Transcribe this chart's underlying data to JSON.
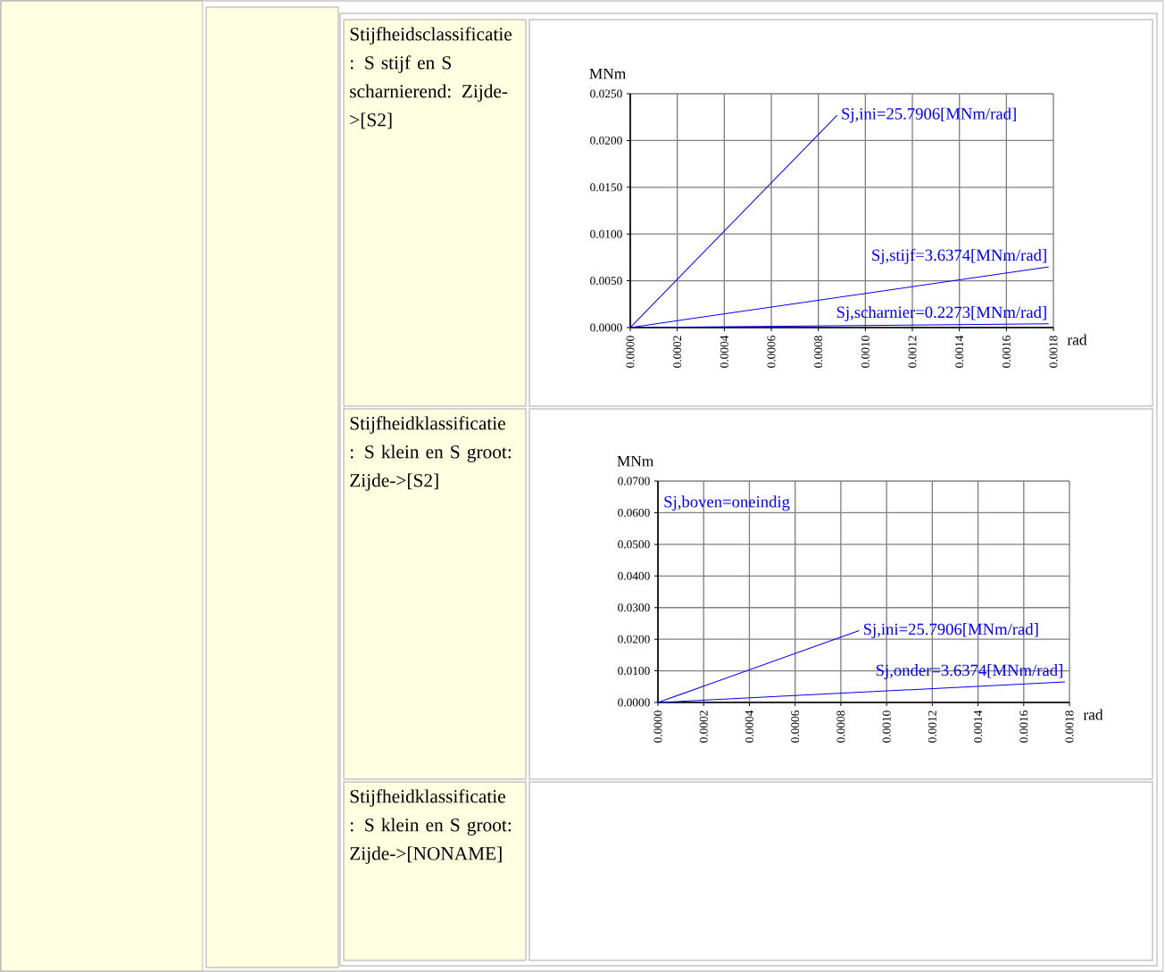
{
  "chart_data": [
    {
      "type": "line",
      "title": "Stijfheidsclassificatie : S stijf en S scharnierend: Zijde->[S2]",
      "xlabel": "rad",
      "ylabel": "MNm",
      "xlim": [
        0,
        0.0018
      ],
      "ylim": [
        0,
        0.025
      ],
      "xticks": [
        {
          "value": 0,
          "label": "0.0000"
        },
        {
          "value": 0.0002,
          "label": "0.0002"
        },
        {
          "value": 0.0004,
          "label": "0.0004"
        },
        {
          "value": 0.0006,
          "label": "0.0006"
        },
        {
          "value": 0.0008,
          "label": "0.0008"
        },
        {
          "value": 0.001,
          "label": "0.0010"
        },
        {
          "value": 0.0012,
          "label": "0.0012"
        },
        {
          "value": 0.0014,
          "label": "0.0014"
        },
        {
          "value": 0.0016,
          "label": "0.0016"
        },
        {
          "value": 0.0018,
          "label": "0.0018"
        }
      ],
      "yticks": [
        {
          "value": 0,
          "label": "0.0000"
        },
        {
          "value": 0.005,
          "label": "0.0050"
        },
        {
          "value": 0.01,
          "label": "0.0100"
        },
        {
          "value": 0.015,
          "label": "0.0150"
        },
        {
          "value": 0.02,
          "label": "0.0200"
        },
        {
          "value": 0.025,
          "label": "0.0250"
        }
      ],
      "grid": true,
      "series": [
        {
          "name": "Sj,ini=25.7906[MNm/rad]",
          "color": "#0000ff",
          "x": [
            0,
            0.00088
          ],
          "values": [
            0,
            0.0227
          ]
        },
        {
          "name": "Sj,stijf=3.6374[MNm/rad]",
          "color": "#0000ff",
          "x": [
            0,
            0.00178
          ],
          "values": [
            0,
            0.0065
          ]
        },
        {
          "name": "Sj,scharnier=0.2273[MNm/rad]",
          "color": "#0000ff",
          "x": [
            0,
            0.00178
          ],
          "values": [
            0,
            0.0004
          ]
        }
      ]
    },
    {
      "type": "line",
      "title": "Stijfheidklassificatie : S klein en S groot: Zijde->[S2]",
      "xlabel": "rad",
      "ylabel": "MNm",
      "xlim": [
        0,
        0.0018
      ],
      "ylim": [
        0,
        0.07
      ],
      "xticks": [
        {
          "value": 0,
          "label": "0.0000"
        },
        {
          "value": 0.0002,
          "label": "0.0002"
        },
        {
          "value": 0.0004,
          "label": "0.0004"
        },
        {
          "value": 0.0006,
          "label": "0.0006"
        },
        {
          "value": 0.0008,
          "label": "0.0008"
        },
        {
          "value": 0.001,
          "label": "0.0010"
        },
        {
          "value": 0.0012,
          "label": "0.0012"
        },
        {
          "value": 0.0014,
          "label": "0.0014"
        },
        {
          "value": 0.0016,
          "label": "0.0016"
        },
        {
          "value": 0.0018,
          "label": "0.0018"
        }
      ],
      "yticks": [
        {
          "value": 0,
          "label": "0.0000"
        },
        {
          "value": 0.01,
          "label": "0.0100"
        },
        {
          "value": 0.02,
          "label": "0.0200"
        },
        {
          "value": 0.03,
          "label": "0.0300"
        },
        {
          "value": 0.04,
          "label": "0.0400"
        },
        {
          "value": 0.05,
          "label": "0.0500"
        },
        {
          "value": 0.06,
          "label": "0.0600"
        },
        {
          "value": 0.07,
          "label": "0.0700"
        }
      ],
      "grid": true,
      "annotations": [
        "Sj,boven=oneindig"
      ],
      "series": [
        {
          "name": "Sj,ini=25.7906[MNm/rad]",
          "color": "#0000ff",
          "x": [
            0,
            0.00088
          ],
          "values": [
            0,
            0.0227
          ]
        },
        {
          "name": "Sj,onder=3.6374[MNm/rad]",
          "color": "#0000ff",
          "x": [
            0,
            0.00178
          ],
          "values": [
            0,
            0.0065
          ]
        }
      ]
    },
    {
      "type": "other",
      "title": "Stijfheidklassificatie : S klein en S groot: Zijde->[NONAME]"
    }
  ]
}
